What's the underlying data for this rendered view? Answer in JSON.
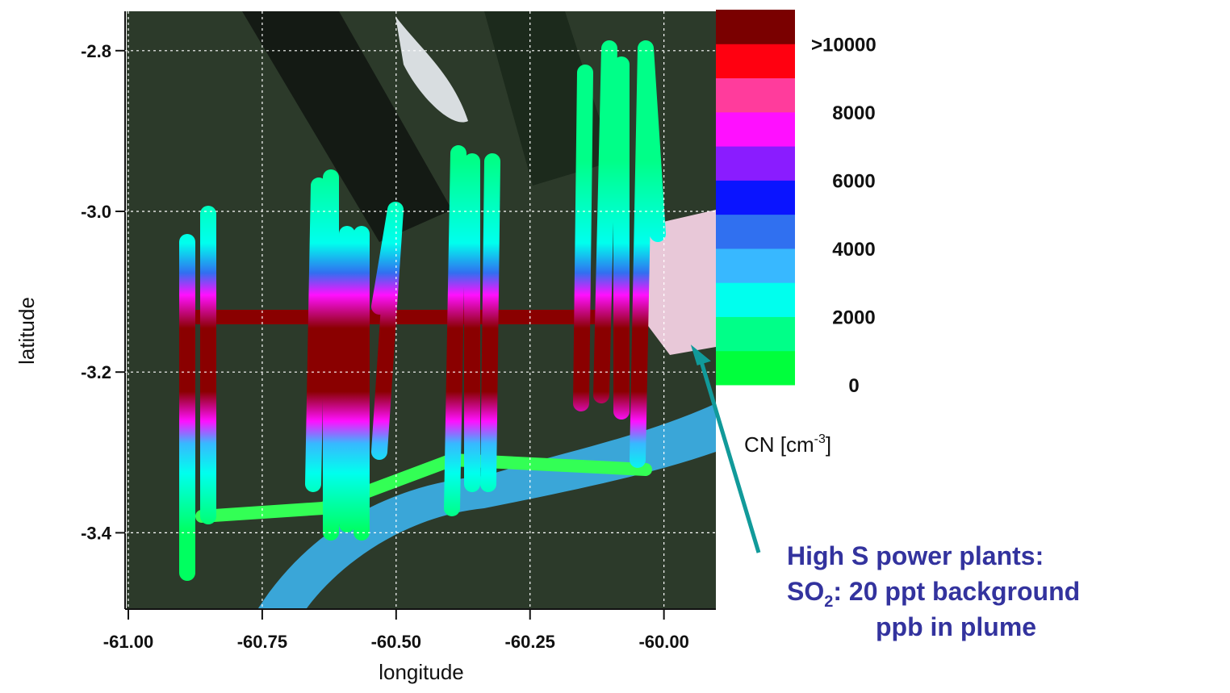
{
  "map": {
    "x_axis": {
      "title": "longitude",
      "lim": [
        -61.0,
        -59.9
      ],
      "ticks": [
        {
          "value": -61.0,
          "label": "-61.00"
        },
        {
          "value": -60.75,
          "label": "-60.75"
        },
        {
          "value": -60.5,
          "label": "-60.50"
        },
        {
          "value": -60.25,
          "label": "-60.25"
        },
        {
          "value": -60.0,
          "label": "-60.00"
        }
      ]
    },
    "y_axis": {
      "title": "latitude",
      "lim": [
        -3.5,
        -2.75
      ],
      "ticks": [
        {
          "value": -2.8,
          "label": "-2.8"
        },
        {
          "value": -3.0,
          "label": "-3.0"
        },
        {
          "value": -3.2,
          "label": "-3.2"
        },
        {
          "value": -3.4,
          "label": "-3.4"
        }
      ]
    },
    "grid": true,
    "colorbar": {
      "lim": [
        0,
        11000
      ],
      "colors": [
        "#00ff3c",
        "#00ff88",
        "#00ffee",
        "#38b8ff",
        "#3070f0",
        "#0a14ff",
        "#8a1cff",
        "#ff10ff",
        "#ff3c9c",
        "#ff0010",
        "#7a0000"
      ],
      "ticks": [
        {
          "value": 10000,
          "label": ">10000"
        },
        8000,
        6000,
        4000,
        2000,
        0
      ],
      "unit_prefix": "CN [cm",
      "unit_exponent": "-3",
      "unit_suffix": "]"
    },
    "annotation": {
      "line1": "High S power plants:",
      "line2_prefix": "SO",
      "line2_subscript": "2",
      "line2_suffix": ": 20 ppt background",
      "line3": "ppb in plume"
    }
  }
}
